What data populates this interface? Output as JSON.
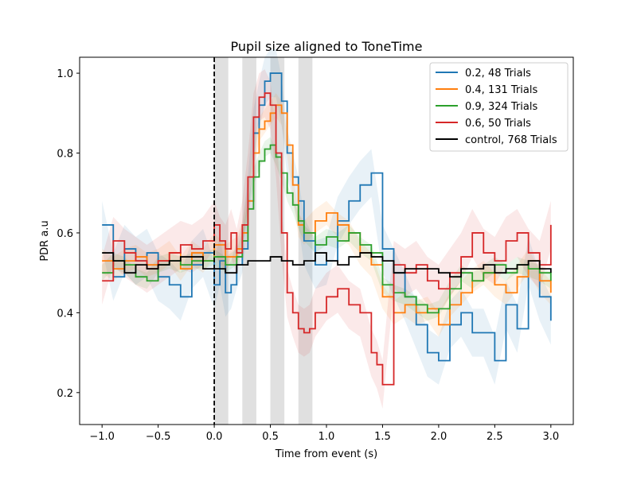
{
  "chart_data": {
    "type": "line",
    "title": "Pupil size aligned to ToneTime",
    "xlabel": "Time from event (s)",
    "ylabel": "PDR a.u",
    "xlim": [
      -1.2,
      3.2
    ],
    "ylim": [
      0.12,
      1.04
    ],
    "xticks": [
      -1.0,
      -0.5,
      0.0,
      0.5,
      1.0,
      1.5,
      2.0,
      2.5,
      3.0
    ],
    "xtick_labels": [
      "−1.0",
      "−0.5",
      "0.0",
      "0.5",
      "1.0",
      "1.5",
      "2.0",
      "2.5",
      "3.0"
    ],
    "yticks": [
      0.2,
      0.4,
      0.6,
      0.8,
      1.0
    ],
    "ytick_labels": [
      "0.2",
      "0.4",
      "0.6",
      "0.8",
      "1.0"
    ],
    "grid": false,
    "legend_position": "upper right",
    "event_line": {
      "x": 0.0,
      "style": "dashed",
      "color": "#000000"
    },
    "shaded_spans": [
      [
        0.0,
        0.125
      ],
      [
        0.25,
        0.375
      ],
      [
        0.5,
        0.625
      ],
      [
        0.75,
        0.875
      ]
    ],
    "series": [
      {
        "name": "0.2, 48 Trials",
        "color": "#1f77b4",
        "x": [
          -1.0,
          -0.9,
          -0.8,
          -0.7,
          -0.6,
          -0.5,
          -0.4,
          -0.3,
          -0.2,
          -0.1,
          0.0,
          0.05,
          0.1,
          0.15,
          0.2,
          0.25,
          0.3,
          0.35,
          0.4,
          0.45,
          0.5,
          0.55,
          0.6,
          0.65,
          0.7,
          0.75,
          0.8,
          0.9,
          1.0,
          1.1,
          1.2,
          1.3,
          1.4,
          1.5,
          1.6,
          1.7,
          1.8,
          1.9,
          2.0,
          2.1,
          2.2,
          2.3,
          2.4,
          2.5,
          2.6,
          2.7,
          2.8,
          2.9,
          3.0
        ],
        "values": [
          0.62,
          0.49,
          0.56,
          0.53,
          0.55,
          0.49,
          0.47,
          0.44,
          0.52,
          0.55,
          0.47,
          0.53,
          0.45,
          0.47,
          0.52,
          0.56,
          0.68,
          0.85,
          0.92,
          0.98,
          1.0,
          1.0,
          0.93,
          0.8,
          0.74,
          0.68,
          0.58,
          0.52,
          0.53,
          0.63,
          0.68,
          0.72,
          0.75,
          0.56,
          0.5,
          0.44,
          0.37,
          0.3,
          0.28,
          0.37,
          0.4,
          0.35,
          0.35,
          0.28,
          0.42,
          0.36,
          0.53,
          0.44,
          0.38
        ],
        "band": 0.06
      },
      {
        "name": "0.4, 131 Trials",
        "color": "#ff7f0e",
        "x": [
          -1.0,
          -0.9,
          -0.8,
          -0.7,
          -0.6,
          -0.5,
          -0.4,
          -0.3,
          -0.2,
          -0.1,
          0.0,
          0.1,
          0.2,
          0.25,
          0.3,
          0.35,
          0.4,
          0.45,
          0.5,
          0.55,
          0.6,
          0.65,
          0.7,
          0.75,
          0.8,
          0.9,
          1.0,
          1.1,
          1.2,
          1.3,
          1.4,
          1.5,
          1.6,
          1.7,
          1.8,
          1.9,
          2.0,
          2.1,
          2.2,
          2.3,
          2.4,
          2.5,
          2.6,
          2.7,
          2.8,
          2.9,
          3.0
        ],
        "values": [
          0.53,
          0.51,
          0.53,
          0.54,
          0.52,
          0.53,
          0.55,
          0.51,
          0.55,
          0.53,
          0.57,
          0.54,
          0.56,
          0.6,
          0.68,
          0.8,
          0.86,
          0.88,
          0.9,
          0.92,
          0.9,
          0.82,
          0.72,
          0.62,
          0.6,
          0.63,
          0.65,
          0.62,
          0.6,
          0.55,
          0.52,
          0.44,
          0.4,
          0.42,
          0.4,
          0.41,
          0.37,
          0.42,
          0.45,
          0.48,
          0.5,
          0.47,
          0.45,
          0.49,
          0.53,
          0.48,
          0.45
        ],
        "band": 0.03
      },
      {
        "name": "0.9, 324 Trials",
        "color": "#2ca02c",
        "x": [
          -1.0,
          -0.9,
          -0.8,
          -0.7,
          -0.6,
          -0.5,
          -0.4,
          -0.3,
          -0.2,
          -0.1,
          0.0,
          0.1,
          0.2,
          0.25,
          0.3,
          0.35,
          0.4,
          0.45,
          0.5,
          0.55,
          0.6,
          0.65,
          0.7,
          0.75,
          0.8,
          0.9,
          1.0,
          1.1,
          1.2,
          1.3,
          1.4,
          1.5,
          1.6,
          1.7,
          1.8,
          1.9,
          2.0,
          2.1,
          2.2,
          2.3,
          2.4,
          2.5,
          2.6,
          2.7,
          2.8,
          2.9,
          3.0
        ],
        "values": [
          0.5,
          0.53,
          0.52,
          0.49,
          0.48,
          0.52,
          0.53,
          0.52,
          0.53,
          0.53,
          0.54,
          0.52,
          0.54,
          0.58,
          0.66,
          0.74,
          0.78,
          0.81,
          0.82,
          0.79,
          0.75,
          0.7,
          0.67,
          0.63,
          0.6,
          0.57,
          0.59,
          0.58,
          0.6,
          0.57,
          0.55,
          0.47,
          0.45,
          0.44,
          0.42,
          0.4,
          0.41,
          0.46,
          0.5,
          0.48,
          0.5,
          0.52,
          0.5,
          0.52,
          0.51,
          0.5,
          0.48
        ],
        "band": 0.02
      },
      {
        "name": "0.6, 50 Trials",
        "color": "#d62728",
        "x": [
          -1.0,
          -0.9,
          -0.8,
          -0.7,
          -0.6,
          -0.5,
          -0.4,
          -0.3,
          -0.2,
          -0.1,
          0.0,
          0.05,
          0.1,
          0.15,
          0.2,
          0.25,
          0.3,
          0.35,
          0.4,
          0.45,
          0.5,
          0.55,
          0.6,
          0.65,
          0.7,
          0.75,
          0.8,
          0.85,
          0.9,
          1.0,
          1.1,
          1.2,
          1.3,
          1.4,
          1.45,
          1.5,
          1.6,
          1.7,
          1.8,
          1.9,
          2.0,
          2.1,
          2.2,
          2.3,
          2.4,
          2.5,
          2.6,
          2.7,
          2.8,
          2.9,
          3.0
        ],
        "values": [
          0.48,
          0.58,
          0.55,
          0.53,
          0.51,
          0.53,
          0.55,
          0.57,
          0.56,
          0.58,
          0.62,
          0.58,
          0.56,
          0.6,
          0.55,
          0.62,
          0.74,
          0.89,
          0.94,
          0.95,
          0.92,
          0.8,
          0.6,
          0.45,
          0.4,
          0.36,
          0.35,
          0.36,
          0.4,
          0.44,
          0.46,
          0.42,
          0.4,
          0.3,
          0.27,
          0.22,
          0.52,
          0.5,
          0.52,
          0.48,
          0.46,
          0.5,
          0.54,
          0.6,
          0.55,
          0.53,
          0.58,
          0.6,
          0.55,
          0.52,
          0.62
        ],
        "band": 0.06
      },
      {
        "name": "control, 768 Trials",
        "color": "#000000",
        "x": [
          -1.0,
          -0.9,
          -0.8,
          -0.7,
          -0.6,
          -0.5,
          -0.4,
          -0.3,
          -0.2,
          -0.1,
          0.0,
          0.1,
          0.2,
          0.3,
          0.4,
          0.5,
          0.6,
          0.7,
          0.8,
          0.9,
          1.0,
          1.1,
          1.2,
          1.3,
          1.4,
          1.5,
          1.6,
          1.7,
          1.8,
          1.9,
          2.0,
          2.1,
          2.2,
          2.3,
          2.4,
          2.5,
          2.6,
          2.7,
          2.8,
          2.9,
          3.0
        ],
        "values": [
          0.55,
          0.53,
          0.5,
          0.52,
          0.51,
          0.52,
          0.53,
          0.54,
          0.54,
          0.51,
          0.51,
          0.5,
          0.52,
          0.53,
          0.53,
          0.54,
          0.53,
          0.52,
          0.53,
          0.55,
          0.53,
          0.52,
          0.54,
          0.55,
          0.54,
          0.53,
          0.5,
          0.51,
          0.51,
          0.51,
          0.5,
          0.49,
          0.51,
          0.51,
          0.52,
          0.5,
          0.51,
          0.52,
          0.53,
          0.51,
          0.5
        ],
        "band": 0.0
      }
    ]
  }
}
